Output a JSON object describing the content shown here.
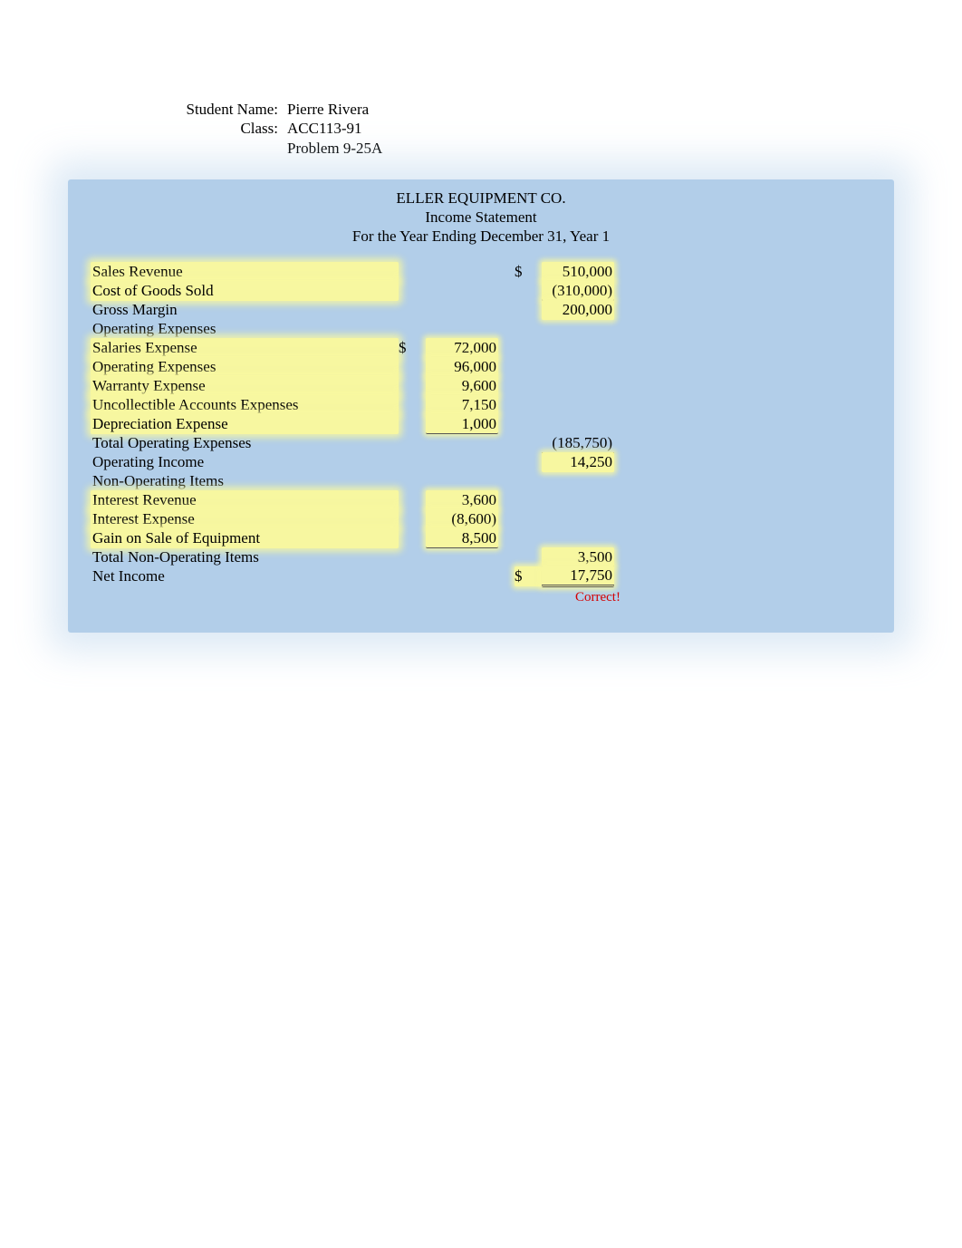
{
  "header": {
    "student_label": "Student Name:",
    "student_value": "Pierre Rivera",
    "class_label": "Class:",
    "class_value": "ACC113-91",
    "problem_value": "Problem 9-25A"
  },
  "statement": {
    "company": "ELLER EQUIPMENT CO.",
    "title": "Income Statement",
    "period": "For the Year Ending December 31, Year 1"
  },
  "rows": {
    "sales_revenue": {
      "label": "Sales Revenue",
      "sym2": "$",
      "amt2": "510,000"
    },
    "cogs": {
      "label": "Cost of Goods Sold",
      "amt2": "(310,000)"
    },
    "gross_margin": {
      "label": "Gross Margin",
      "amt2": "200,000"
    },
    "op_exp_header": {
      "label": "Operating Expenses"
    },
    "salaries": {
      "label": "Salaries Expense",
      "sym1": "$",
      "amt1": "72,000"
    },
    "operating": {
      "label": "Operating Expenses",
      "amt1": "96,000"
    },
    "warranty": {
      "label": "Warranty Expense",
      "amt1": "9,600"
    },
    "uncollectible": {
      "label": "Uncollectible Accounts Expenses",
      "amt1": "7,150"
    },
    "depreciation": {
      "label": "Depreciation Expense",
      "amt1": "1,000"
    },
    "total_op_exp": {
      "label": "Total Operating Expenses",
      "amt2": "(185,750)"
    },
    "op_income": {
      "label": "Operating Income",
      "amt2": "14,250"
    },
    "nonop_header": {
      "label": "Non-Operating Items"
    },
    "int_rev": {
      "label": "Interest Revenue",
      "amt1": "3,600"
    },
    "int_exp": {
      "label": "Interest Expense",
      "amt1": "(8,600)"
    },
    "gain": {
      "label": "Gain on Sale of Equipment",
      "amt1": "8,500"
    },
    "total_nonop": {
      "label": "Total Non-Operating Items",
      "amt2": "3,500"
    },
    "net_income": {
      "label": "Net Income",
      "sym2": "$",
      "amt2": "17,750"
    }
  },
  "feedback": {
    "text": "Correct!"
  },
  "colors": {
    "box_bg": "#b2cee9",
    "highlight": "#f7f7a0",
    "feedback": "#d40000",
    "text": "#000000",
    "page_bg": "#ffffff"
  }
}
